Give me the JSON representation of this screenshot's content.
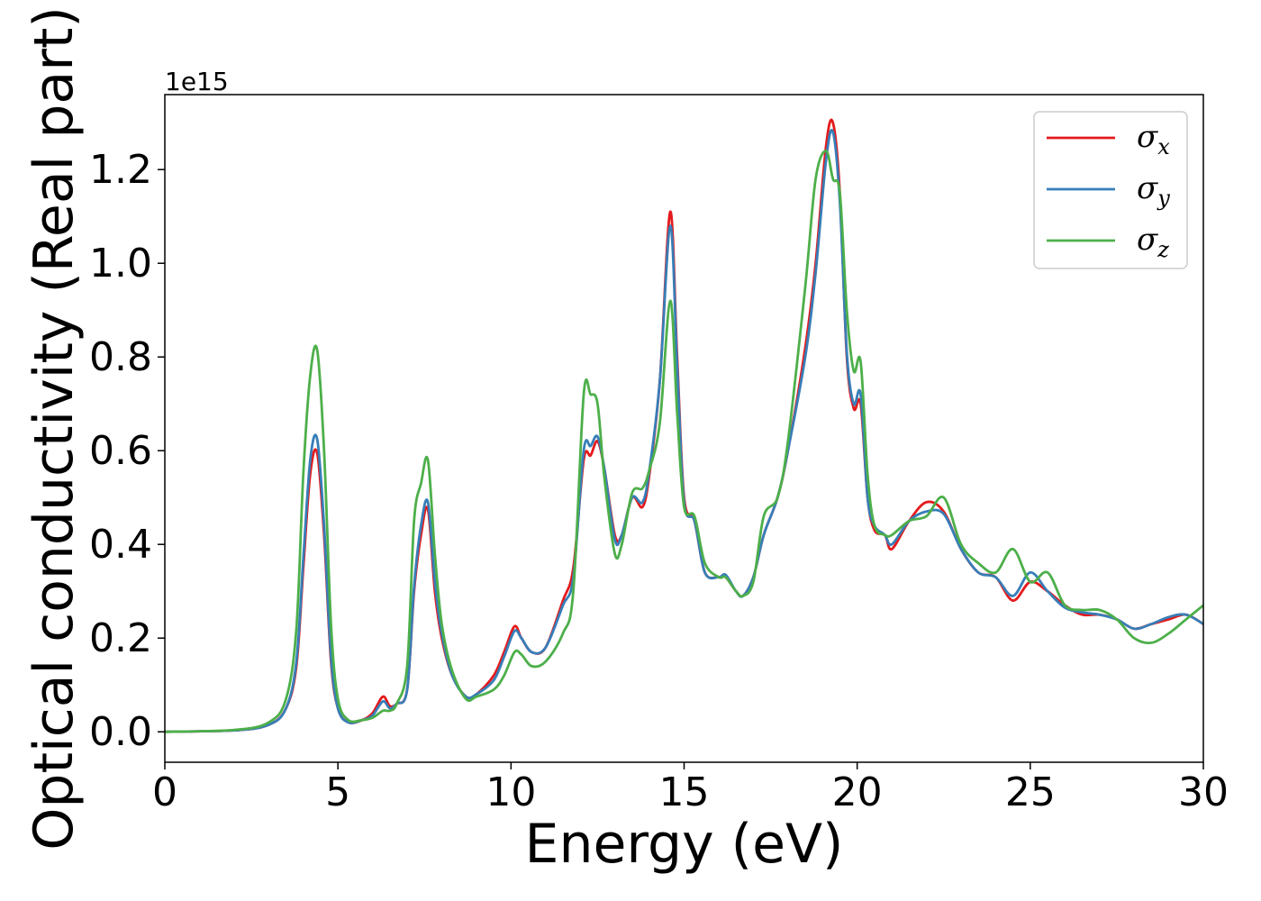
{
  "chart_data": {
    "type": "line",
    "title": "",
    "xlabel": "Energy (eV)",
    "ylabel": "Optical conductivity (Real part)",
    "y_offset_label": "1e15",
    "xlim": [
      0,
      30
    ],
    "ylim": [
      -0.065,
      1.36
    ],
    "xticks": [
      0,
      5,
      10,
      15,
      20,
      25,
      30
    ],
    "xtick_labels": [
      "0",
      "5",
      "10",
      "15",
      "20",
      "25",
      "30"
    ],
    "yticks": [
      0.0,
      0.2,
      0.4,
      0.6,
      0.8,
      1.0,
      1.2
    ],
    "ytick_labels": [
      "0.0",
      "0.2",
      "0.4",
      "0.6",
      "0.8",
      "1.0",
      "1.2"
    ],
    "grid": false,
    "legend_position": "top-right",
    "series": [
      {
        "name": "σ",
        "subscript": "x",
        "color": "#e41a1c",
        "x": [
          0,
          2,
          3,
          3.5,
          3.8,
          4.0,
          4.2,
          4.4,
          4.6,
          4.8,
          5.0,
          5.3,
          5.7,
          6.0,
          6.3,
          6.5,
          6.7,
          7.0,
          7.2,
          7.4,
          7.6,
          7.8,
          8.0,
          8.3,
          8.7,
          9.0,
          9.5,
          9.8,
          10.1,
          10.3,
          10.6,
          11.0,
          11.5,
          11.8,
          12.1,
          12.3,
          12.5,
          12.7,
          13.0,
          13.2,
          13.5,
          13.8,
          14.0,
          14.3,
          14.6,
          14.8,
          15.0,
          15.3,
          15.6,
          16.0,
          16.2,
          16.5,
          16.7,
          17.0,
          17.3,
          17.7,
          18.0,
          18.5,
          18.8,
          19.1,
          19.3,
          19.5,
          19.7,
          19.9,
          20.1,
          20.3,
          20.5,
          20.8,
          21.0,
          21.5,
          22.0,
          22.5,
          23.0,
          23.5,
          24.0,
          24.5,
          25.0,
          25.5,
          26.0,
          26.5,
          27.0,
          27.5,
          28.0,
          28.5,
          29.0,
          29.5,
          30.0
        ],
        "values": [
          0.0,
          0.003,
          0.015,
          0.05,
          0.14,
          0.35,
          0.55,
          0.595,
          0.42,
          0.15,
          0.05,
          0.02,
          0.025,
          0.04,
          0.075,
          0.055,
          0.06,
          0.09,
          0.3,
          0.42,
          0.475,
          0.3,
          0.2,
          0.12,
          0.075,
          0.08,
          0.12,
          0.17,
          0.225,
          0.2,
          0.17,
          0.18,
          0.28,
          0.35,
          0.58,
          0.59,
          0.62,
          0.56,
          0.42,
          0.42,
          0.5,
          0.48,
          0.55,
          0.75,
          1.11,
          0.8,
          0.5,
          0.45,
          0.34,
          0.33,
          0.33,
          0.3,
          0.29,
          0.33,
          0.42,
          0.5,
          0.6,
          0.82,
          1.0,
          1.25,
          1.3,
          1.15,
          0.8,
          0.69,
          0.7,
          0.5,
          0.43,
          0.42,
          0.39,
          0.45,
          0.49,
          0.47,
          0.39,
          0.34,
          0.33,
          0.28,
          0.32,
          0.3,
          0.27,
          0.25,
          0.25,
          0.24,
          0.22,
          0.23,
          0.24,
          0.25,
          0.23
        ]
      },
      {
        "name": "σ",
        "subscript": "y",
        "color": "#377eb8",
        "x": [
          0,
          2,
          3,
          3.5,
          3.8,
          4.0,
          4.2,
          4.4,
          4.6,
          4.8,
          5.0,
          5.3,
          5.7,
          6.0,
          6.3,
          6.5,
          6.7,
          7.0,
          7.2,
          7.4,
          7.6,
          7.8,
          8.0,
          8.3,
          8.7,
          9.0,
          9.5,
          9.8,
          10.1,
          10.3,
          10.6,
          11.0,
          11.5,
          11.8,
          12.1,
          12.3,
          12.5,
          12.7,
          13.0,
          13.2,
          13.5,
          13.8,
          14.0,
          14.3,
          14.6,
          14.8,
          15.0,
          15.3,
          15.6,
          16.0,
          16.2,
          16.5,
          16.7,
          17.0,
          17.3,
          17.7,
          18.0,
          18.5,
          18.8,
          19.1,
          19.3,
          19.5,
          19.7,
          19.9,
          20.1,
          20.3,
          20.5,
          20.8,
          21.0,
          21.5,
          22.0,
          22.5,
          23.0,
          23.5,
          24.0,
          24.5,
          25.0,
          25.5,
          26.0,
          26.5,
          27.0,
          27.5,
          28.0,
          28.5,
          29.0,
          29.5,
          30.0
        ],
        "values": [
          0.0,
          0.003,
          0.015,
          0.05,
          0.15,
          0.37,
          0.58,
          0.625,
          0.44,
          0.16,
          0.05,
          0.02,
          0.025,
          0.035,
          0.065,
          0.05,
          0.06,
          0.09,
          0.31,
          0.44,
          0.49,
          0.32,
          0.21,
          0.12,
          0.075,
          0.08,
          0.11,
          0.16,
          0.215,
          0.2,
          0.17,
          0.18,
          0.27,
          0.33,
          0.6,
          0.61,
          0.63,
          0.56,
          0.41,
          0.42,
          0.5,
          0.49,
          0.56,
          0.75,
          1.08,
          0.78,
          0.49,
          0.45,
          0.34,
          0.33,
          0.335,
          0.3,
          0.29,
          0.33,
          0.42,
          0.5,
          0.6,
          0.8,
          0.98,
          1.22,
          1.28,
          1.13,
          0.81,
          0.7,
          0.72,
          0.5,
          0.44,
          0.42,
          0.4,
          0.45,
          0.47,
          0.465,
          0.39,
          0.34,
          0.33,
          0.29,
          0.34,
          0.3,
          0.265,
          0.255,
          0.25,
          0.24,
          0.22,
          0.23,
          0.245,
          0.25,
          0.23
        ]
      },
      {
        "name": "σ",
        "subscript": "z",
        "color": "#4daf4a",
        "x": [
          0,
          2,
          3,
          3.5,
          3.8,
          4.0,
          4.2,
          4.4,
          4.6,
          4.8,
          5.0,
          5.3,
          5.7,
          6.0,
          6.3,
          6.5,
          6.7,
          7.0,
          7.2,
          7.4,
          7.6,
          7.8,
          8.0,
          8.3,
          8.7,
          9.0,
          9.5,
          9.8,
          10.1,
          10.3,
          10.6,
          11.0,
          11.5,
          11.8,
          12.1,
          12.3,
          12.5,
          12.7,
          13.0,
          13.2,
          13.5,
          13.8,
          14.0,
          14.3,
          14.6,
          14.8,
          15.0,
          15.3,
          15.6,
          16.0,
          16.2,
          16.5,
          16.7,
          17.0,
          17.3,
          17.7,
          18.0,
          18.5,
          18.8,
          19.1,
          19.3,
          19.5,
          19.7,
          19.9,
          20.1,
          20.3,
          20.5,
          20.8,
          21.0,
          21.5,
          22.0,
          22.5,
          23.0,
          23.5,
          24.0,
          24.5,
          25.0,
          25.5,
          26.0,
          26.5,
          27.0,
          27.5,
          28.0,
          28.5,
          29.0,
          29.5,
          30.0
        ],
        "values": [
          0.0,
          0.004,
          0.02,
          0.07,
          0.22,
          0.55,
          0.76,
          0.815,
          0.6,
          0.23,
          0.07,
          0.025,
          0.025,
          0.03,
          0.045,
          0.045,
          0.06,
          0.14,
          0.45,
          0.53,
          0.58,
          0.38,
          0.23,
          0.13,
          0.07,
          0.075,
          0.09,
          0.12,
          0.17,
          0.165,
          0.14,
          0.15,
          0.21,
          0.3,
          0.72,
          0.72,
          0.7,
          0.54,
          0.38,
          0.4,
          0.51,
          0.52,
          0.56,
          0.66,
          0.92,
          0.68,
          0.48,
          0.46,
          0.36,
          0.33,
          0.33,
          0.3,
          0.29,
          0.32,
          0.46,
          0.5,
          0.62,
          0.95,
          1.18,
          1.24,
          1.18,
          1.15,
          0.9,
          0.77,
          0.79,
          0.55,
          0.44,
          0.42,
          0.42,
          0.45,
          0.46,
          0.5,
          0.4,
          0.36,
          0.34,
          0.39,
          0.32,
          0.34,
          0.27,
          0.26,
          0.26,
          0.24,
          0.2,
          0.19,
          0.21,
          0.24,
          0.27
        ]
      }
    ]
  }
}
